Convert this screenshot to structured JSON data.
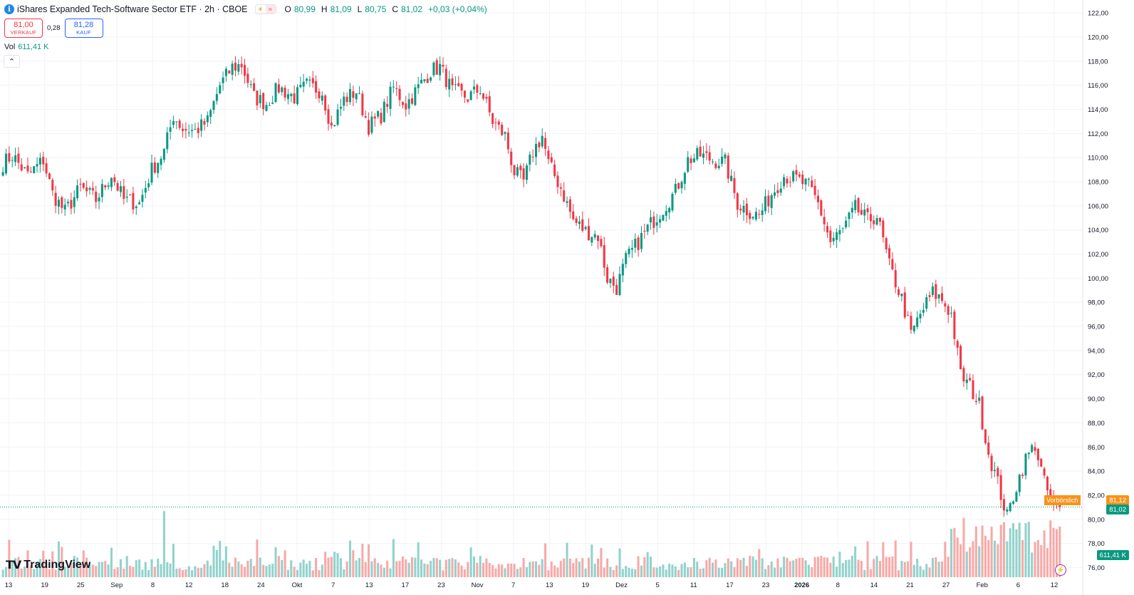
{
  "header": {
    "title": "iShares Expanded Tech-Software Sector ETF · 2h · CBOE",
    "logo_letter": "i",
    "ohlc": {
      "o_label": "O",
      "o_value": "80,99",
      "h_label": "H",
      "h_value": "81,09",
      "l_label": "L",
      "l_value": "80,75",
      "c_label": "C",
      "c_value": "81,02",
      "change": "+0,03 (+0,04%)"
    }
  },
  "trade": {
    "sell_value": "81,00",
    "sell_label": "VERKAUF",
    "spread": "0,28",
    "buy_value": "81,28",
    "buy_label": "KAUF"
  },
  "volume_legend": {
    "label": "Vol",
    "value": "611,41 K"
  },
  "price_axis": {
    "ticks": [
      "122,00",
      "120,00",
      "118,00",
      "116,00",
      "114,00",
      "112,00",
      "110,00",
      "108,00",
      "106,00",
      "104,00",
      "102,00",
      "100,00",
      "98,00",
      "96,00",
      "94,00",
      "92,00",
      "90,00",
      "88,00",
      "86,00",
      "84,00",
      "82,00",
      "80,00",
      "78,00",
      "76,00"
    ],
    "current_price_tag": "81,02",
    "preliminary_label": "Vorbörslich",
    "preliminary_price_tag": "81,12",
    "volume_tag": "611,41 K"
  },
  "time_axis": {
    "labels": [
      "13",
      "19",
      "25",
      "Sep",
      "8",
      "12",
      "18",
      "24",
      "Okt",
      "7",
      "13",
      "17",
      "23",
      "Nov",
      "7",
      "13",
      "19",
      "Dez",
      "5",
      "11",
      "17",
      "23",
      "2026",
      "8",
      "14",
      "21",
      "27",
      "Feb",
      "6",
      "12"
    ]
  },
  "branding": {
    "name": "TradingView"
  },
  "colors": {
    "up": "#089981",
    "down": "#f23645",
    "up_vol": "#92d2cc",
    "down_vol": "#f7a9a7",
    "grid": "#f0f3fa",
    "prelim": "#f7931a"
  },
  "chart_data": {
    "type": "candlestick",
    "interval": "2h",
    "y_range": [
      75.2,
      122.6
    ],
    "close_path_anchors": [
      [
        0,
        109.5
      ],
      [
        3,
        110.2
      ],
      [
        8,
        108.5
      ],
      [
        13,
        109.8
      ],
      [
        16,
        107.0
      ],
      [
        20,
        105.5
      ],
      [
        25,
        107.5
      ],
      [
        30,
        106.5
      ],
      [
        35,
        108.6
      ],
      [
        39,
        106.5
      ],
      [
        44,
        106.2
      ],
      [
        48,
        109.0
      ],
      [
        52,
        110.5
      ],
      [
        55,
        113.5
      ],
      [
        58,
        112.4
      ],
      [
        62,
        112.2
      ],
      [
        66,
        113.0
      ],
      [
        70,
        116.0
      ],
      [
        74,
        117.5
      ],
      [
        77,
        117.7
      ],
      [
        81,
        115.0
      ],
      [
        85,
        114.5
      ],
      [
        89,
        115.8
      ],
      [
        94,
        115.0
      ],
      [
        98,
        116.0
      ],
      [
        103,
        115.5
      ],
      [
        106,
        112.5
      ],
      [
        110,
        114.8
      ],
      [
        114,
        115.5
      ],
      [
        118,
        112.6
      ],
      [
        122,
        113.5
      ],
      [
        126,
        115.8
      ],
      [
        130,
        114.4
      ],
      [
        134,
        115.8
      ],
      [
        138,
        117.2
      ],
      [
        141,
        117.5
      ],
      [
        145,
        115.5
      ],
      [
        150,
        115.0
      ],
      [
        154,
        115.7
      ],
      [
        158,
        113.0
      ],
      [
        162,
        111.8
      ],
      [
        165,
        108.8
      ],
      [
        168,
        108.0
      ],
      [
        171,
        110.5
      ],
      [
        174,
        111.8
      ],
      [
        176,
        109.5
      ],
      [
        180,
        107.5
      ],
      [
        184,
        104.8
      ],
      [
        188,
        103.9
      ],
      [
        192,
        103.5
      ],
      [
        195,
        100.0
      ],
      [
        198,
        99.2
      ],
      [
        201,
        101.5
      ],
      [
        205,
        103.0
      ],
      [
        209,
        104.5
      ],
      [
        213,
        105.8
      ],
      [
        217,
        107.2
      ],
      [
        221,
        109.8
      ],
      [
        225,
        110.2
      ],
      [
        229,
        109.8
      ],
      [
        233,
        109.6
      ],
      [
        237,
        106.2
      ],
      [
        241,
        105.5
      ],
      [
        244,
        105.2
      ],
      [
        248,
        107.0
      ],
      [
        252,
        108.5
      ],
      [
        256,
        108.2
      ],
      [
        260,
        107.6
      ],
      [
        263,
        106.2
      ],
      [
        267,
        103.0
      ],
      [
        271,
        104.0
      ],
      [
        275,
        105.8
      ],
      [
        279,
        104.8
      ],
      [
        282,
        105.2
      ],
      [
        286,
        101.0
      ],
      [
        290,
        98.3
      ],
      [
        293,
        95.3
      ],
      [
        296,
        97.0
      ],
      [
        300,
        98.8
      ],
      [
        303,
        98.2
      ],
      [
        306,
        97.0
      ],
      [
        309,
        92.0
      ],
      [
        312,
        91.0
      ],
      [
        315,
        89.5
      ],
      [
        318,
        85.5
      ],
      [
        321,
        83.0
      ],
      [
        324,
        80.2
      ],
      [
        327,
        82.8
      ],
      [
        330,
        85.0
      ],
      [
        333,
        86.2
      ],
      [
        336,
        83.0
      ],
      [
        339,
        81.0
      ],
      [
        341,
        81.02
      ]
    ],
    "volume_spike_bars": [
      [
        52,
        5.8
      ],
      [
        310,
        5.2
      ],
      [
        322,
        4.6
      ],
      [
        327,
        4.2
      ]
    ]
  }
}
